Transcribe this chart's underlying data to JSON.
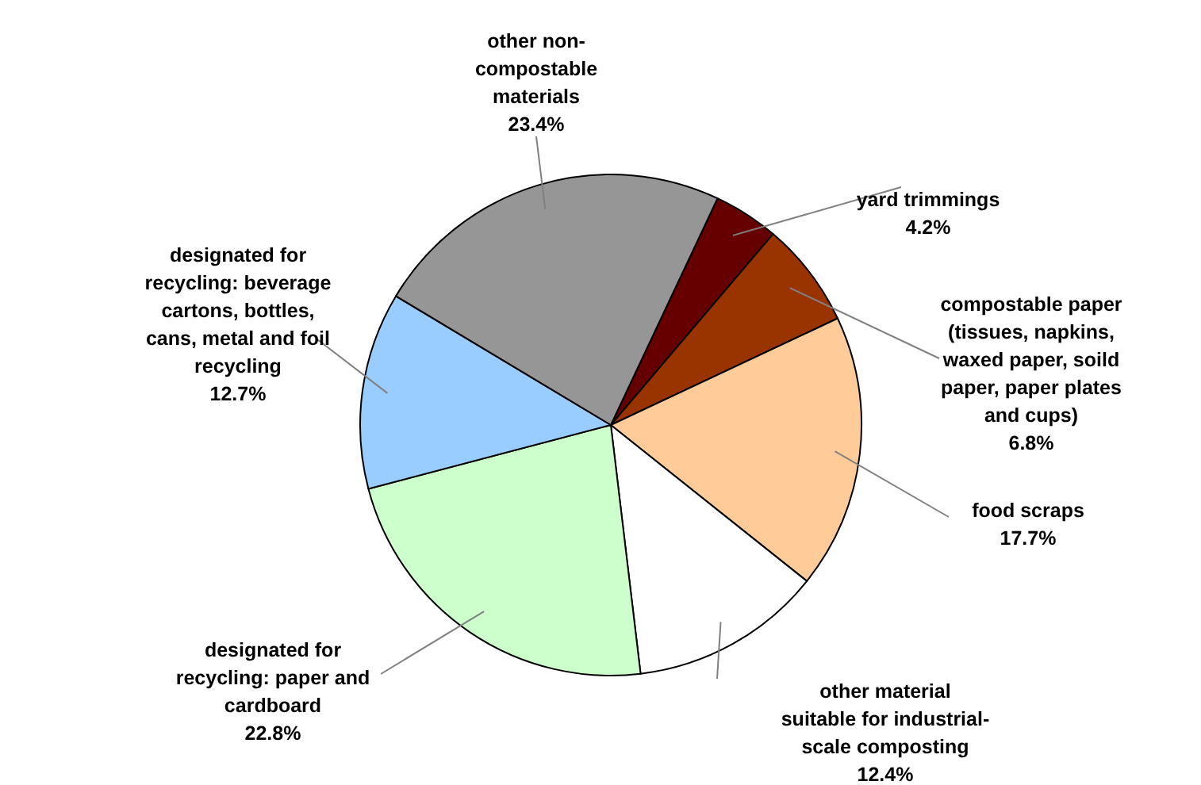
{
  "chart_data": {
    "type": "pie",
    "categories": [
      "yard trimmings",
      "compostable paper\n(tissues, napkins,\nwaxed paper, soild\npaper, paper plates\nand cups)",
      "food scraps",
      "other material\nsuitable for industrial-\nscale composting",
      "designated for\nrecycling: paper and\ncardboard",
      "designated for\nrecycling: beverage\ncartons, bottles,\ncans, metal and foil\nrecycling",
      "other non-\ncompostable\nmaterials"
    ],
    "values": [
      4.2,
      6.8,
      17.7,
      12.4,
      22.8,
      12.7,
      23.4
    ],
    "value_labels": [
      "4.2%",
      "6.8%",
      "17.7%",
      "12.4%",
      "22.8%",
      "12.7%",
      "23.4%"
    ],
    "colors": [
      "#660000",
      "#993300",
      "#ffcc99",
      "#ffffff",
      "#ccffcc",
      "#99ccff",
      "#969696"
    ]
  }
}
